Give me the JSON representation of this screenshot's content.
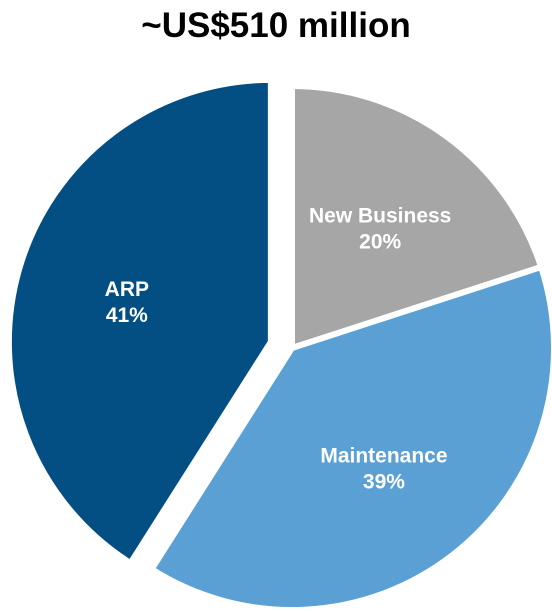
{
  "chart_data": {
    "type": "pie",
    "title": "~US$510 million",
    "categories": [
      "New Business",
      "Maintenance",
      "ARP"
    ],
    "values": [
      20,
      39,
      41
    ],
    "value_labels": [
      "20%",
      "39%",
      "41%"
    ],
    "unit": "%",
    "legend": "none",
    "exploded": [
      "ARP"
    ],
    "colors": {
      "New Business": "#a6a6a6",
      "Maintenance": "#5aa0d4",
      "ARP": "#034f84"
    }
  }
}
